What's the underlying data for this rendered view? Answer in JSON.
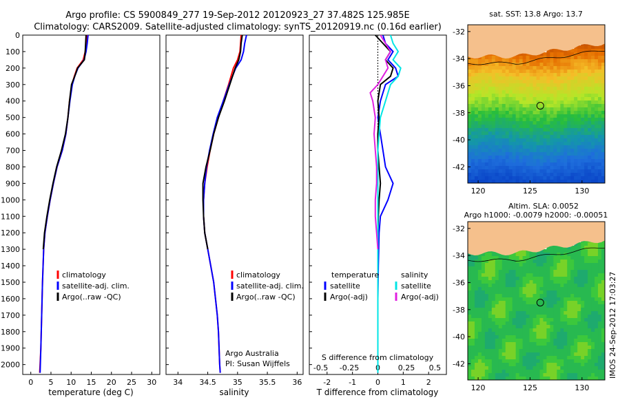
{
  "header": {
    "line1": "Argo profile: CS 5900849_277 19-Sep-2012 20120923_27 37.482S 125.985E",
    "line2": "Climatology: CARS2009. Satellite-adjusted climatology: synTS_20120919.nc (0.16d earlier)"
  },
  "colors": {
    "climatology": "#ff0000",
    "satellite": "#0000ff",
    "argo": "#000000",
    "sat_salinity": "#00e5e5",
    "argo_salinity": "#e020e0",
    "land": "#f5c08c"
  },
  "depth_axis": {
    "ylim": [
      2060,
      0
    ],
    "ticks": [
      0,
      100,
      200,
      300,
      400,
      500,
      600,
      700,
      800,
      900,
      1000,
      1100,
      1200,
      1300,
      1400,
      1500,
      1600,
      1700,
      1800,
      1900,
      2000
    ],
    "tick_labels": [
      "0",
      "100",
      "200",
      "300",
      "400",
      "500",
      "600",
      "700",
      "800",
      "900",
      "1000",
      "1100",
      "1200",
      "1300",
      "1400",
      "1500",
      "1600",
      "1700",
      "1800",
      "1900",
      "2000"
    ]
  },
  "legends": {
    "profile": [
      "climatology",
      "satellite-adj. clim.",
      "Argo(..raw -QC)"
    ],
    "diff_temperature_title": "temperature",
    "diff_salinity_title": "salinity",
    "diff_temperature": [
      "satellite",
      "Argo(-adj)"
    ],
    "diff_salinity": [
      "satellite",
      "Argo(-adj)"
    ]
  },
  "annotations": {
    "argo_australia": "Argo Australia",
    "pi": "PI: Susan Wijffels"
  },
  "maps": {
    "sst_title": "sat. SST: 13.8 Argo: 13.7",
    "sla_title1": "Altim. SLA: 0.0052",
    "sla_title2": "Argo h1000: -0.0079 h2000: -0.00051",
    "x_ticks": [
      120,
      125,
      130
    ],
    "x_tick_labels": [
      "120",
      "125",
      "130"
    ],
    "y_ticks": [
      -32,
      -34,
      -36,
      -38,
      -40,
      -42
    ],
    "y_tick_labels": [
      "-32",
      "-34",
      "-36",
      "-38",
      "-40",
      "-42"
    ],
    "float_position": {
      "lon": 125.985,
      "lat": -37.482
    }
  },
  "side_label": "IMOS 24-Sep-2012 17:03:27",
  "chart_data": [
    {
      "type": "line",
      "xlabel": "temperature (deg C)",
      "xlim": [
        -2,
        32
      ],
      "x_ticks": [
        0,
        5,
        10,
        15,
        20,
        25,
        30
      ],
      "x_tick_labels": [
        "0",
        "5",
        "10",
        "15",
        "20",
        "25",
        "30"
      ],
      "series": [
        {
          "name": "climatology",
          "depth": [
            0,
            50,
            100,
            150,
            200,
            250,
            300,
            400,
            500,
            600,
            700,
            800,
            900,
            1000,
            1100,
            1200,
            1300,
            1500,
            1700,
            1900,
            2050
          ],
          "x": [
            14.0,
            13.8,
            13.5,
            13.0,
            11.5,
            10.8,
            10.2,
            9.6,
            9.2,
            8.7,
            7.8,
            6.5,
            5.6,
            4.8,
            4.1,
            3.5,
            3.2,
            2.9,
            2.7,
            2.5,
            2.2
          ]
        },
        {
          "name": "satellite-adj. clim.",
          "depth": [
            0,
            50,
            100,
            150,
            200,
            250,
            300,
            400,
            500,
            600,
            700,
            800,
            900,
            1000,
            1100,
            1200,
            1300,
            1500,
            1700,
            1900,
            2050
          ],
          "x": [
            14.2,
            14.0,
            13.7,
            13.2,
            11.7,
            10.9,
            10.3,
            9.7,
            9.2,
            8.7,
            7.8,
            6.5,
            5.6,
            4.8,
            4.1,
            3.5,
            3.2,
            2.9,
            2.7,
            2.5,
            2.3
          ]
        },
        {
          "name": "Argo(..raw -QC)",
          "depth": [
            0,
            50,
            100,
            150,
            200,
            250,
            300,
            400,
            500,
            600,
            700,
            800,
            900,
            1000,
            1100,
            1200,
            1300
          ],
          "x": [
            13.7,
            13.6,
            13.5,
            13.3,
            11.6,
            10.9,
            10.1,
            9.6,
            9.2,
            8.6,
            7.6,
            6.4,
            5.5,
            4.7,
            4.0,
            3.4,
            3.1
          ]
        }
      ]
    },
    {
      "type": "line",
      "xlabel": "salinity",
      "xlim": [
        33.8,
        36.1
      ],
      "x_ticks": [
        34,
        34.5,
        35,
        35.5,
        36
      ],
      "x_tick_labels": [
        "34",
        "34.5",
        "35",
        "35.5",
        "36"
      ],
      "series": [
        {
          "name": "climatology",
          "depth": [
            0,
            50,
            100,
            150,
            200,
            300,
            400,
            500,
            600,
            700,
            800,
            900,
            1000,
            1100,
            1200,
            1300,
            1400,
            1500,
            1600,
            1700,
            1800,
            1900,
            2000,
            2050
          ],
          "x": [
            35.06,
            35.05,
            35.04,
            35.0,
            34.93,
            34.85,
            34.76,
            34.68,
            34.6,
            34.54,
            34.49,
            34.45,
            34.43,
            34.43,
            34.45,
            34.5,
            34.55,
            34.6,
            34.63,
            34.66,
            34.68,
            34.69,
            34.7,
            34.71
          ]
        },
        {
          "name": "satellite-adj. clim.",
          "depth": [
            0,
            50,
            100,
            150,
            200,
            300,
            400,
            500,
            600,
            700,
            800,
            900,
            1000,
            1100,
            1200,
            1300,
            1400,
            1500,
            1600,
            1700,
            1800,
            1900,
            2000,
            2050
          ],
          "x": [
            35.15,
            35.12,
            35.1,
            35.06,
            34.97,
            34.86,
            34.76,
            34.66,
            34.59,
            34.53,
            34.48,
            34.45,
            34.43,
            34.43,
            34.45,
            34.5,
            34.55,
            34.6,
            34.63,
            34.66,
            34.68,
            34.69,
            34.7,
            34.71
          ]
        },
        {
          "name": "Argo(..raw -QC)",
          "depth": [
            0,
            50,
            100,
            150,
            200,
            300,
            400,
            500,
            600,
            700,
            800,
            900,
            1000,
            1100,
            1200,
            1300
          ],
          "x": [
            35.08,
            35.06,
            35.05,
            35.02,
            34.96,
            34.87,
            34.78,
            34.68,
            34.6,
            34.54,
            34.47,
            34.42,
            34.42,
            34.43,
            34.45,
            34.5
          ]
        }
      ]
    },
    {
      "type": "line",
      "xlabel": "T difference from climatology",
      "xlabel_top": "S difference from climatology",
      "xlim": [
        -2.7,
        2.7
      ],
      "x_ticks": [
        -2,
        -1,
        0,
        1,
        2
      ],
      "x_tick_labels": [
        "-2",
        "-1",
        "0",
        "1",
        "2"
      ],
      "top_ticks": [
        -0.5,
        -0.25,
        0,
        0.25,
        0.5
      ],
      "top_tick_labels": [
        "-0.5",
        "-0.25",
        "0",
        "0.25",
        "0.5"
      ],
      "series": [
        {
          "name": "temperature satellite",
          "depth": [
            0,
            50,
            100,
            150,
            200,
            250,
            300,
            400,
            500,
            600,
            700,
            800,
            900,
            1000,
            1100,
            1200,
            1400,
            1600,
            1800,
            2000,
            2050
          ],
          "x": [
            0.2,
            0.3,
            0.6,
            0.4,
            0.7,
            0.8,
            0.3,
            0.1,
            0.0,
            0.1,
            0.2,
            0.3,
            0.6,
            0.4,
            0.1,
            0.05,
            0.02,
            0.0,
            0.0,
            0.0,
            0.0
          ]
        },
        {
          "name": "temperature Argo(-adj)",
          "depth": [
            0,
            50,
            100,
            150,
            200,
            250,
            300,
            400,
            500,
            600,
            700,
            800,
            900,
            1000,
            1100,
            1200,
            1300
          ],
          "x": [
            -0.1,
            0.2,
            0.5,
            0.3,
            0.6,
            0.5,
            0.1,
            0.0,
            0.05,
            0.0,
            0.0,
            0.05,
            0.1,
            0.05,
            0.02,
            0.0,
            0.0
          ]
        },
        {
          "name": "salinity satellite",
          "depth": [
            0,
            50,
            100,
            150,
            200,
            250,
            300,
            400,
            500,
            600,
            700,
            800,
            900,
            1000,
            1200,
            1400,
            1600,
            1800,
            2000,
            2050
          ],
          "x": [
            0.5,
            0.6,
            0.8,
            0.6,
            0.9,
            0.8,
            0.5,
            0.3,
            0.1,
            0.05,
            0.0,
            0.0,
            0.0,
            0.0,
            0.0,
            0.0,
            0.0,
            0.0,
            0.0,
            0.0
          ]
        },
        {
          "name": "salinity Argo(-adj)",
          "depth": [
            0,
            50,
            100,
            150,
            200,
            250,
            300,
            350,
            400,
            500,
            600,
            700,
            800,
            900,
            1000,
            1100,
            1200,
            1300
          ],
          "x": [
            0.1,
            0.3,
            0.5,
            0.3,
            0.4,
            0.2,
            0.0,
            -0.3,
            -0.2,
            -0.1,
            -0.15,
            -0.1,
            -0.05,
            -0.05,
            -0.1,
            -0.1,
            -0.05,
            0.0
          ]
        }
      ]
    }
  ]
}
